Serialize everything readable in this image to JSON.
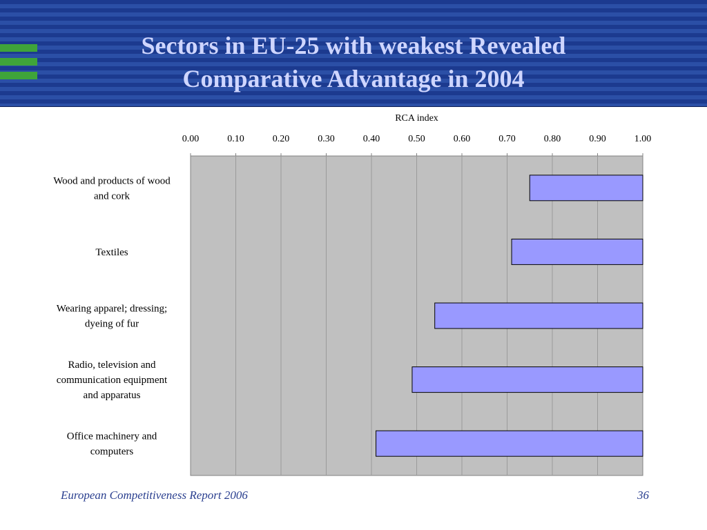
{
  "slide": {
    "title_line1": "Sectors in EU-25 with weakest Revealed",
    "title_line2": "Comparative Advantage in 2004",
    "footer_source": "European Competitiveness Report 2006",
    "page_number": "36"
  },
  "colors": {
    "header_blue": "#1c3a8f",
    "logo_green": "#3fa43a",
    "bar_fill": "#9999ff",
    "plot_background": "#c0c0c0"
  },
  "chart_data": {
    "type": "bar",
    "orientation": "horizontal",
    "xlabel": "RCA index",
    "xlabel_position": "top",
    "xlim": [
      0,
      1.0
    ],
    "x_ticks": [
      "0.00",
      "0.10",
      "0.20",
      "0.30",
      "0.40",
      "0.50",
      "0.60",
      "0.70",
      "0.80",
      "0.90",
      "1.00"
    ],
    "grid": true,
    "legend": "none",
    "bars_extend_from": 1.0,
    "categories": [
      [
        "Wood and products of wood",
        "and cork"
      ],
      [
        "Textiles"
      ],
      [
        "Wearing apparel; dressing;",
        "dyeing of fur"
      ],
      [
        "Radio, television and",
        "communication equipment",
        "and apparatus"
      ],
      [
        "Office machinery and",
        "computers"
      ]
    ],
    "values": [
      0.75,
      0.71,
      0.54,
      0.49,
      0.41
    ]
  }
}
